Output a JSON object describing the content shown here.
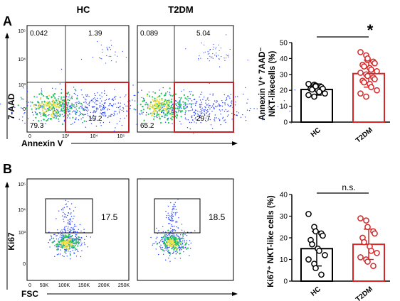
{
  "colors": {
    "axis": "#000000",
    "gate_red": "#c0272d",
    "hc_point": "#000000",
    "t2dm_point": "#d62728",
    "density_low": "#1f3cff",
    "density_mid": "#22c55e",
    "density_high": "#f4e04d"
  },
  "panelA": {
    "letter": "A",
    "group_titles": [
      "HC",
      "T2DM"
    ],
    "y_label": "7-AAD",
    "x_label": "Annexin V",
    "y_ticks": [
      "10⁵",
      "10⁴",
      "10³",
      "0"
    ],
    "x_ticks": [
      "0",
      "10³",
      "10⁴",
      "10⁵"
    ],
    "plots": [
      {
        "group": "HC",
        "q_ul": "0.042",
        "q_ur": "1.39",
        "q_ll": "79.3",
        "q_lr": "19.2"
      },
      {
        "group": "T2DM",
        "q_ul": "0.089",
        "q_ur": "5.04",
        "q_ll": "65.2",
        "q_lr": "29.7"
      }
    ]
  },
  "panelB": {
    "letter": "B",
    "y_label": "Ki67",
    "x_label": "FSC",
    "y_ticks": [
      "10⁵",
      "10⁴",
      "10³",
      "0"
    ],
    "x_ticks": [
      "0",
      "50K",
      "100K",
      "150K",
      "200K",
      "250K"
    ],
    "plots": [
      {
        "group": "HC",
        "gate_value": "17.5"
      },
      {
        "group": "T2DM",
        "gate_value": "18.5"
      }
    ]
  },
  "chart_data": [
    {
      "type": "bar",
      "panel": "A",
      "ylabel_line1": "Annexin V⁺ 7AAD⁻",
      "ylabel_line2": "NKT-likecells (%)",
      "categories": [
        "HC",
        "T2DM"
      ],
      "ylim": [
        0,
        50
      ],
      "yticks": [
        "0",
        "10",
        "20",
        "30",
        "40",
        "50"
      ],
      "bars": [
        {
          "category": "HC",
          "mean": 20.5,
          "sd_low": 17,
          "sd_high": 24,
          "points": [
            24,
            23.5,
            23,
            22,
            21,
            21,
            20.5,
            20,
            19,
            18,
            17,
            16,
            22.5
          ]
        },
        {
          "category": "T2DM",
          "mean": 30.5,
          "sd_low": 22,
          "sd_high": 39,
          "points": [
            44,
            42,
            39,
            38,
            37,
            36,
            35,
            34,
            33,
            32,
            31,
            30,
            29,
            28,
            27,
            26,
            25,
            24,
            22,
            20,
            18,
            16,
            40
          ]
        }
      ],
      "significance": "*"
    },
    {
      "type": "bar",
      "panel": "B",
      "ylabel_line1": "Ki67⁺ NKT-like cells (%)",
      "categories": [
        "HC",
        "T2DM"
      ],
      "ylim": [
        0,
        40
      ],
      "yticks": [
        "0",
        "10",
        "20",
        "30",
        "40"
      ],
      "bars": [
        {
          "category": "HC",
          "mean": 15,
          "sd_low": 7,
          "sd_high": 23,
          "points": [
            31,
            25,
            23,
            22,
            21,
            19,
            17,
            15,
            14,
            12,
            10,
            8,
            6,
            3
          ]
        },
        {
          "category": "T2DM",
          "mean": 17,
          "sd_low": 10,
          "sd_high": 24,
          "points": [
            29,
            28,
            25,
            23,
            22,
            20,
            18,
            16,
            14,
            13,
            11,
            10,
            9,
            7
          ]
        }
      ],
      "significance": "n.s."
    }
  ]
}
